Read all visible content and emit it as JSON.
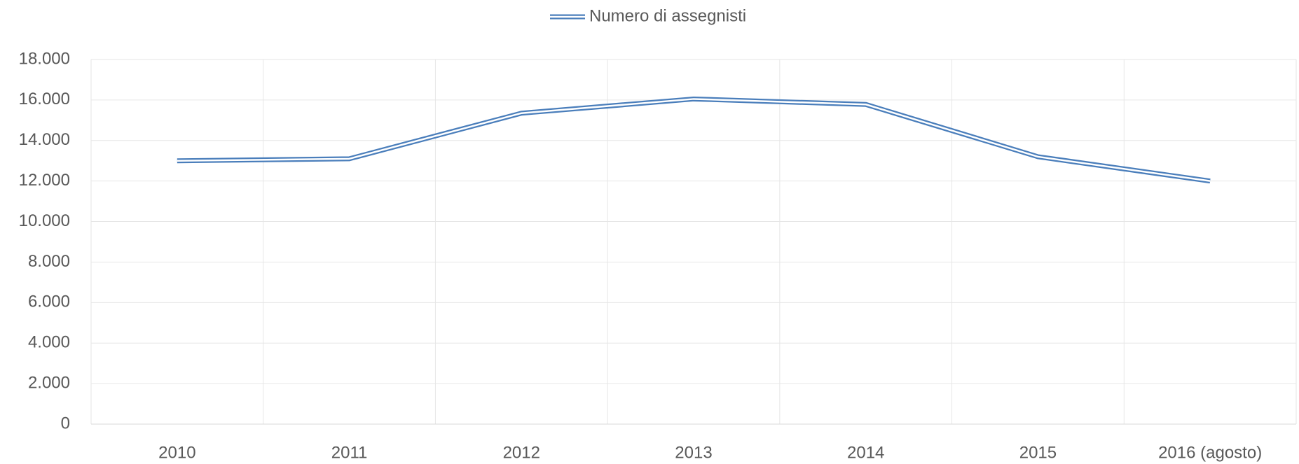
{
  "chart_data": {
    "type": "line",
    "categories": [
      "2010",
      "2011",
      "2012",
      "2013",
      "2014",
      "2015",
      "2016 (agosto)"
    ],
    "series": [
      {
        "name": "Numero di assegnisti",
        "color": "#4a7ebb",
        "values": [
          13000,
          13100,
          15350,
          16050,
          15780,
          13200,
          12000
        ]
      }
    ],
    "ylim": [
      0,
      18000
    ],
    "yticks": [
      0,
      {
        "value": 2000,
        "label": "2.000"
      },
      {
        "value": 4000,
        "label": "4.000"
      },
      {
        "value": 6000,
        "label": "6.000"
      },
      {
        "value": 8000,
        "label": "8.000"
      },
      {
        "value": 10000,
        "label": "10.000"
      },
      {
        "value": 12000,
        "label": "12.000"
      },
      {
        "value": 14000,
        "label": "14.000"
      },
      {
        "value": 16000,
        "label": "16.000"
      },
      {
        "value": 18000,
        "label": "18.000"
      }
    ],
    "grid": true,
    "legend": "top"
  }
}
